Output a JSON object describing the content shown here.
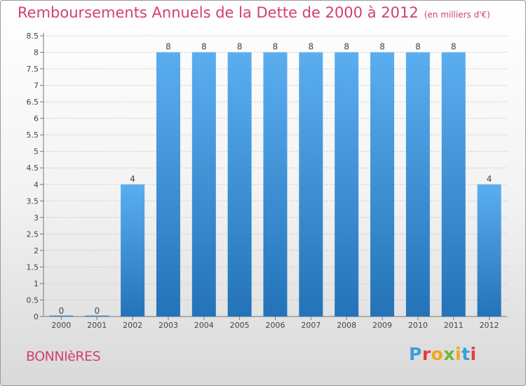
{
  "header": {
    "title": "Remboursements Annuels de la Dette de 2000 à 2012",
    "unit": "(en milliers d'€)"
  },
  "footer": {
    "commune": "BONNIèRES",
    "brand": "Proxiti"
  },
  "colors": {
    "title": "#d23f74",
    "bar_top": "#5aaef0",
    "bar_bottom": "#2473b8",
    "grid": "#c8c8c8",
    "brand_letters": [
      "#3aa0d8",
      "#e8393f",
      "#f2a51d",
      "#6bb739",
      "#f2a51d",
      "#3aa0d8",
      "#e8393f"
    ]
  },
  "chart_data": {
    "type": "bar",
    "title": "Remboursements Annuels de la Dette de 2000 à 2012",
    "xlabel": "",
    "ylabel": "",
    "categories": [
      "2000",
      "2001",
      "2002",
      "2003",
      "2004",
      "2005",
      "2006",
      "2007",
      "2008",
      "2009",
      "2010",
      "2011",
      "2012"
    ],
    "values": [
      0,
      0,
      4,
      8,
      8,
      8,
      8,
      8,
      8,
      8,
      8,
      8,
      4
    ],
    "data_labels": [
      "0",
      "0",
      "4",
      "8",
      "8",
      "8",
      "8",
      "8",
      "8",
      "8",
      "8",
      "8",
      "4"
    ],
    "ylim": [
      0,
      8.5
    ],
    "yticks": [
      "0",
      "0.5",
      "1",
      "1.5",
      "2",
      "2.5",
      "3",
      "3.5",
      "4",
      "4.5",
      "5",
      "5.5",
      "6",
      "6.5",
      "7",
      "7.5",
      "8",
      "8.5"
    ],
    "grid": true,
    "legend": "none"
  }
}
